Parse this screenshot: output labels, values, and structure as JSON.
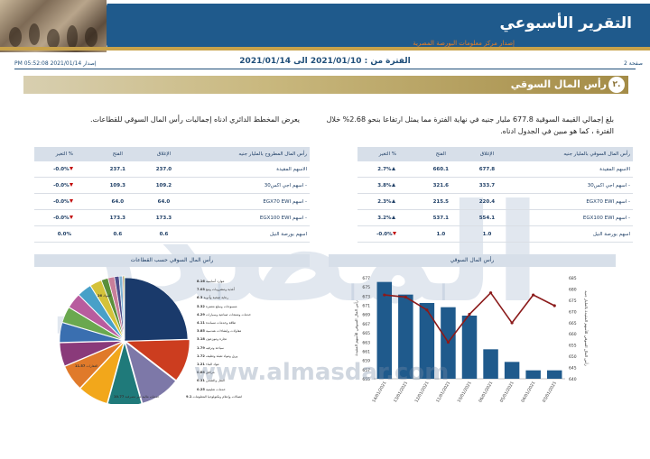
{
  "header": {
    "title": "التقرير الأسبوعي",
    "subtitle": "إصدار مركز معلومات البورصة المصرية"
  },
  "info": {
    "page": "صفحة 2",
    "issue": "إصدار 2021/01/14 05:52:08 PM",
    "period": "الفترة من : 2021/01/10 الى 2021/01/14"
  },
  "section": {
    "number": "٢.",
    "title": "رأس المال السوقي"
  },
  "paragraphs": {
    "right": "بلغ إجمالي القيمة السوقية 677.8 مليار جنيه في نهاية الفترة مما يمثل ارتفاعا بنحو 2.68% خلال الفترة ، كما هو مبين في الجدول ادناه.",
    "left": "يعرض المخطط الدائري ادناه إجماليات رأس المال السوقي للقطاعات."
  },
  "table_market_cap": {
    "headers": [
      "رأس المال السوقي بالمليار جنيه",
      "الإغلاق",
      "الفتح",
      "% التغير"
    ],
    "rows": [
      {
        "name": "الاسهم المقيدة",
        "close": "677.8",
        "open": "660.1",
        "change": "2.7%",
        "dir": "up"
      },
      {
        "name": "- اسهم اجي اكس30",
        "close": "333.7",
        "open": "321.6",
        "change": "3.8%",
        "dir": "up"
      },
      {
        "name": "- اسهم EGX70 EWI",
        "close": "220.4",
        "open": "215.5",
        "change": "2.3%",
        "dir": "up"
      },
      {
        "name": "- اسهم EGX100 EWI",
        "close": "554.1",
        "open": "537.1",
        "change": "3.2%",
        "dir": "up"
      },
      {
        "name": "اسهم بورصة النيل",
        "close": "1.0",
        "open": "1.0",
        "change": "-0.0%",
        "dir": "down"
      }
    ]
  },
  "table_free_float": {
    "headers": [
      "رأس المال المطروح بالمليار جنيه",
      "الإغلاق",
      "الفتح",
      "% التغير"
    ],
    "rows": [
      {
        "name": "الاسهم المقيدة",
        "close": "237.0",
        "open": "237.1",
        "change": "-0.0%",
        "dir": "down"
      },
      {
        "name": "- اسهم اجي اكس30",
        "close": "109.2",
        "open": "109.3",
        "change": "-0.0%",
        "dir": "down"
      },
      {
        "name": "- اسهم EGX70 EWI",
        "close": "64.0",
        "open": "64.0",
        "change": "-0.0%",
        "dir": "down"
      },
      {
        "name": "- اسهم EGX100 EWI",
        "close": "173.3",
        "open": "173.3",
        "change": "-0.0%",
        "dir": "down"
      },
      {
        "name": "اسهم بورصة النيل",
        "close": "0.6",
        "open": "0.6",
        "change": "0.0%",
        "dir": "none"
      }
    ]
  },
  "watermark": {
    "arabic": "المصدر",
    "url": "www.almasdar.com"
  },
  "colors": {
    "navy": "#1f5a8c",
    "gold": "#c8a24a",
    "bar": "#1f5a8c",
    "line": "#8b1a1a",
    "down": "#c00000"
  },
  "chart_data": [
    {
      "type": "pie",
      "title": "رأس المال السوقي حسب القطاعات",
      "slices": [
        {
          "label": "البنوك",
          "value": 26.0,
          "color": "#1a3a6b"
        },
        {
          "label": "العقارات",
          "value": 11.57,
          "color": "#cc3d1f"
        },
        {
          "label": "خدمات مالية غير مصرفية",
          "value": 10.77,
          "color": "#7d78a8"
        },
        {
          "label": "اتصالات وإعلام وتكنولوجيا المعلومات",
          "value": 9.1,
          "color": "#1f7a7a"
        },
        {
          "label": "موارد أساسية",
          "value": 8.16,
          "color": "#f2a71b"
        },
        {
          "label": "أغذية ومشروبات وتبغ",
          "value": 7.03,
          "color": "#e07a2a"
        },
        {
          "label": "رعاية صحية وأدوية",
          "value": 6.3,
          "color": "#8a3a7a"
        },
        {
          "label": "منسوجات وسلع معمرة",
          "value": 5.32,
          "color": "#3a6fb0"
        },
        {
          "label": "خدمات ومنتجات صناعية وسيارات",
          "value": 4.29,
          "color": "#6aa84f"
        },
        {
          "label": "طاقة وخدمات مساندة",
          "value": 4.11,
          "color": "#b85c9e"
        },
        {
          "label": "مقاولات وإنشاءات هندسية",
          "value": 3.85,
          "color": "#48a0c8"
        },
        {
          "label": "تجارة وموزعون",
          "value": 3.18,
          "color": "#d4c23a"
        },
        {
          "label": "سياحة وترفيه",
          "value": 1.79,
          "color": "#5a8f3a"
        },
        {
          "label": "ورق ومواد تعبئة وتغليف",
          "value": 1.72,
          "color": "#c87f9a"
        },
        {
          "label": "مواد البناء",
          "value": 1.21,
          "color": "#4d4d8a"
        },
        {
          "label": "مرافق",
          "value": 0.88,
          "color": "#7fb3d5"
        },
        {
          "label": "النقل والشحن",
          "value": 0.31,
          "color": "#a0522d"
        },
        {
          "label": "خدمات تعليمية",
          "value": 0.25,
          "color": "#9acd32"
        }
      ]
    },
    {
      "type": "bar",
      "title": "رأس المال السوقي",
      "ylabel_left": "رأس المال السوقي للأسهم المقيدة",
      "ylabel_right": "رأس المال السوقي للأسهم المقيدة بالمليار جنيه",
      "categories": [
        "14/01/2021",
        "13/01/2021",
        "12/01/2021",
        "11/01/2021",
        "10/01/2021",
        "06/01/2021",
        "05/01/2021",
        "04/01/2021",
        "03/01/2021"
      ],
      "bars": [
        678,
        675,
        673,
        672,
        670,
        662,
        659,
        657,
        657
      ],
      "line": [
        679,
        678,
        672,
        657,
        670,
        680,
        666,
        679,
        674
      ],
      "left_ticks": [
        "677",
        "675",
        "673",
        "671",
        "669",
        "667",
        "665",
        "663",
        "661",
        "659",
        "657",
        "655"
      ],
      "right_ticks": [
        "685",
        "680",
        "675",
        "670",
        "665",
        "660",
        "655",
        "650",
        "645",
        "640"
      ],
      "ylim_bars": [
        655,
        679
      ],
      "ylim_line": [
        640,
        687
      ]
    }
  ]
}
